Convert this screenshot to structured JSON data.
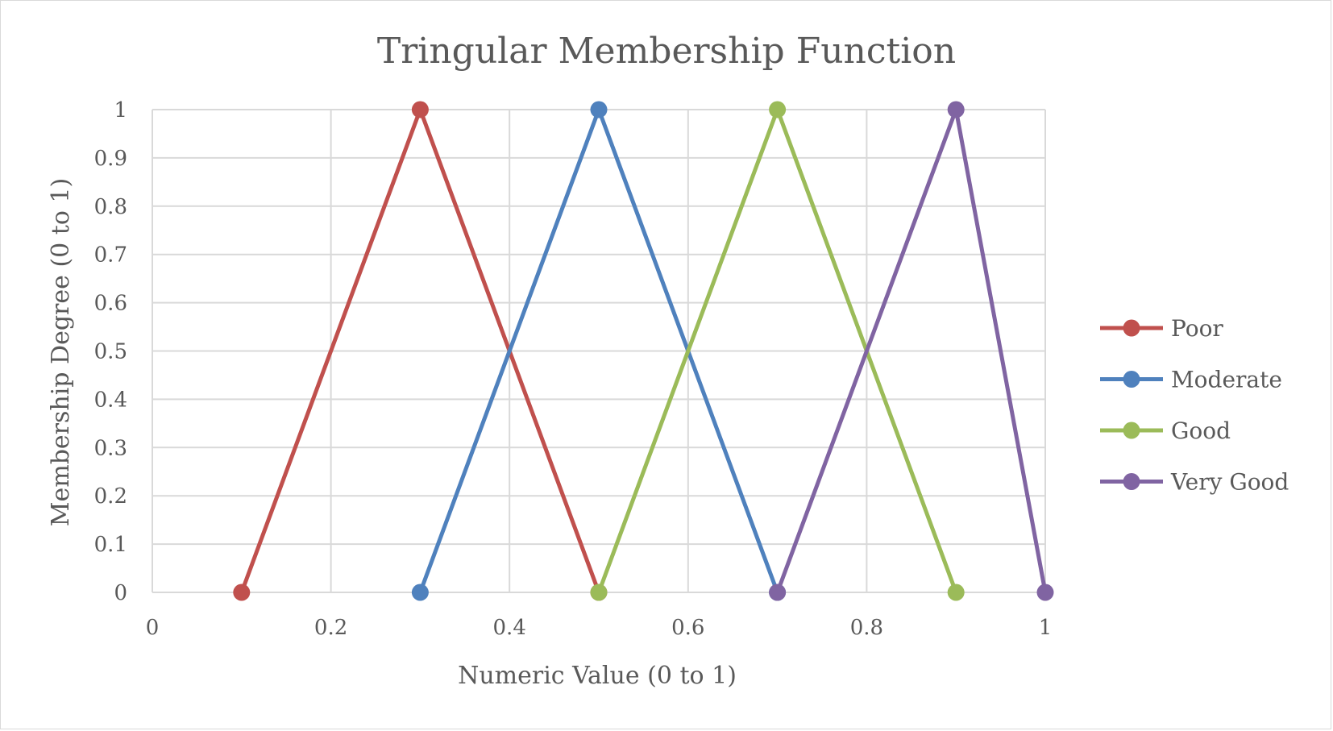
{
  "chart_data": {
    "type": "line",
    "title": "Tringular Membership Function",
    "xlabel": "Numeric Value (0 to 1)",
    "ylabel": "Membership Degree (0 to 1)",
    "xlim": [
      0,
      1
    ],
    "ylim": [
      0,
      1
    ],
    "x_ticks": [
      "0",
      "0.2",
      "0.4",
      "0.6",
      "0.8",
      "1"
    ],
    "y_ticks": [
      "0",
      "0.1",
      "0.2",
      "0.3",
      "0.4",
      "0.5",
      "0.6",
      "0.7",
      "0.8",
      "0.9",
      "1"
    ],
    "grid": true,
    "legend_position": "right",
    "series": [
      {
        "name": "Poor",
        "color": "#c0504d",
        "x": [
          0.1,
          0.3,
          0.5
        ],
        "y": [
          0,
          1,
          0
        ]
      },
      {
        "name": "Moderate",
        "color": "#4f81bd",
        "x": [
          0.3,
          0.5,
          0.7
        ],
        "y": [
          0,
          1,
          0
        ]
      },
      {
        "name": "Good",
        "color": "#9bbb59",
        "x": [
          0.5,
          0.7,
          0.9
        ],
        "y": [
          0,
          1,
          0
        ]
      },
      {
        "name": "Very Good",
        "color": "#8064a2",
        "x": [
          0.7,
          0.9,
          1.0
        ],
        "y": [
          0,
          1,
          0
        ]
      }
    ]
  }
}
